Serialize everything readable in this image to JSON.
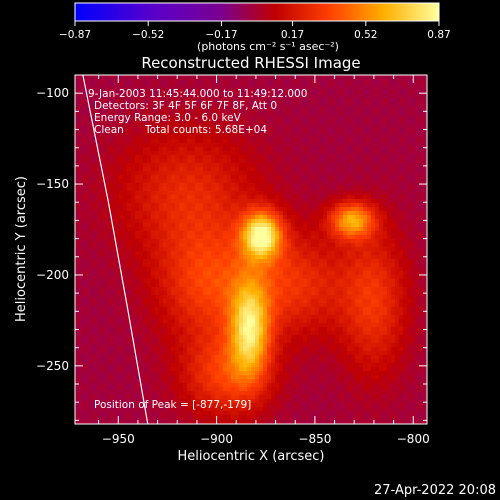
{
  "chart_data": {
    "type": "heatmap",
    "title": "Reconstructed RHESSI Image",
    "xlabel": "Heliocentric X (arcsec)",
    "ylabel": "Heliocentric Y (arcsec)",
    "xlim": [
      -972,
      -793
    ],
    "ylim": [
      -282,
      -90
    ],
    "x_ticks": [
      -950,
      -900,
      -850,
      -800
    ],
    "y_ticks": [
      -100,
      -150,
      -200,
      -250
    ],
    "colorbar": {
      "unit": "(photons cm⁻² s⁻¹ asec⁻²)",
      "ticks": [
        -0.87,
        -0.52,
        -0.17,
        0.17,
        0.52,
        0.87
      ],
      "range": [
        -0.87,
        0.87
      ]
    },
    "annotations": [
      "9-Jan-2003 11:45:44.000 to 11:49:12.000",
      "Detectors: 3F 4F 5F 6F 7F 8F, Att 0",
      "Energy Range: 3.0 - 6.0 keV",
      "Clean",
      "Total counts: 5.68E+04"
    ],
    "peak_label": "Position of Peak = [-877,-179]",
    "peak": {
      "x": -877,
      "y": -179
    },
    "sources": [
      {
        "x": -877,
        "y": -178,
        "sx": 7,
        "sy": 9,
        "amp": 0.8
      },
      {
        "x": -831,
        "y": -170,
        "sx": 8,
        "sy": 7,
        "amp": 0.58
      },
      {
        "x": -883,
        "y": -230,
        "sx": 7,
        "sy": 18,
        "amp": 0.65
      },
      {
        "x": -905,
        "y": -205,
        "sx": 18,
        "sy": 22,
        "amp": 0.32
      },
      {
        "x": -895,
        "y": -255,
        "sx": 16,
        "sy": 16,
        "amp": 0.34
      },
      {
        "x": -862,
        "y": -205,
        "sx": 20,
        "sy": 20,
        "amp": 0.3
      },
      {
        "x": -820,
        "y": -215,
        "sx": 12,
        "sy": 28,
        "amp": 0.3
      },
      {
        "x": -915,
        "y": -155,
        "sx": 25,
        "sy": 25,
        "amp": 0.26
      }
    ],
    "limb_curve": [
      [
        -968,
        -90
      ],
      [
        -955,
        -160
      ],
      [
        -945,
        -220
      ],
      [
        -935,
        -282
      ]
    ]
  },
  "footer": {
    "date": "27-Apr-2022 20:08"
  }
}
